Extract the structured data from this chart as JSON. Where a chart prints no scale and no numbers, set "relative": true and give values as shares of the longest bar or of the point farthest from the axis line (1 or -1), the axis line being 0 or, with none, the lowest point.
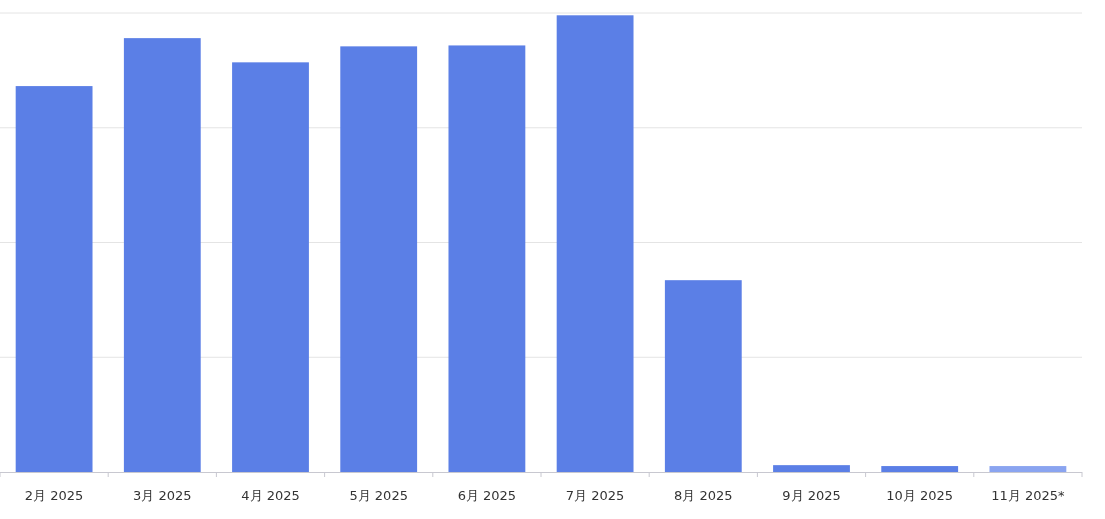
{
  "chart_data": {
    "type": "bar",
    "relative": true,
    "grid": "y",
    "categories": [
      "2月 2025",
      "3月 2025",
      "4月 2025",
      "5月 2025",
      "6月 2025",
      "7月 2025",
      "8月 2025",
      "9月 2025",
      "10月 2025",
      "11月 2025*"
    ],
    "values": [
      0.845,
      0.95,
      0.897,
      0.932,
      0.934,
      1,
      0.42,
      0.015,
      0.013,
      0.013
    ],
    "colors": [
      "#5b7fe6",
      "#5b7fe6",
      "#5b7fe6",
      "#5b7fe6",
      "#5b7fe6",
      "#5b7fe6",
      "#5b7fe6",
      "#5b7fe6",
      "#5b7fe6",
      "#8aa4f0"
    ]
  }
}
